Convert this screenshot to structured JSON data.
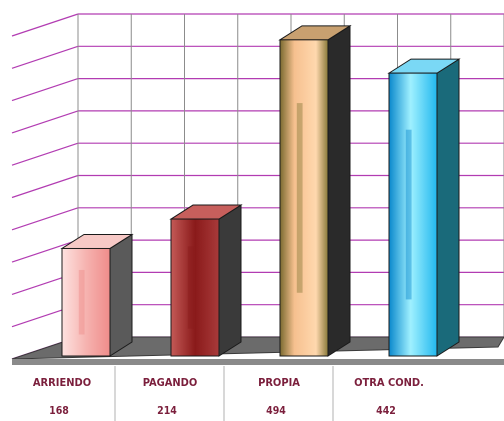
{
  "chart_data": {
    "type": "bar",
    "style": "3d-column",
    "categories": [
      "ARRIENDO",
      "PAGANDO",
      "PROPIA",
      "OTRA COND."
    ],
    "values": [
      168,
      214,
      494,
      442
    ],
    "value_labels": [
      "168",
      "214",
      "494",
      "442"
    ],
    "ylim": [
      0,
      500
    ],
    "grid": true,
    "legend": "none",
    "gridline_color": "#b23cb2",
    "label_color": "#7b1f3c",
    "bar_colors": [
      {
        "front": "#f2a7a4",
        "light": "#fde2e0",
        "mid": "#ee8c8a",
        "side": "#5a5a5a",
        "top": "#f7c9c6"
      },
      {
        "front": "#a83a3a",
        "light": "#c45a57",
        "mid": "#8a1a1a",
        "side": "#3a3a3a",
        "top": "#c75f5c"
      },
      {
        "front": "#f6c08f",
        "light": "#ffd8ae",
        "mid": "#8a7a3a",
        "side": "#2a2a2a",
        "top": "#c8a070"
      },
      {
        "front": "#22b8ee",
        "light": "#9ff0ff",
        "mid": "#0a88cc",
        "side": "#1a6a7a",
        "top": "#7ad8f5"
      }
    ]
  }
}
